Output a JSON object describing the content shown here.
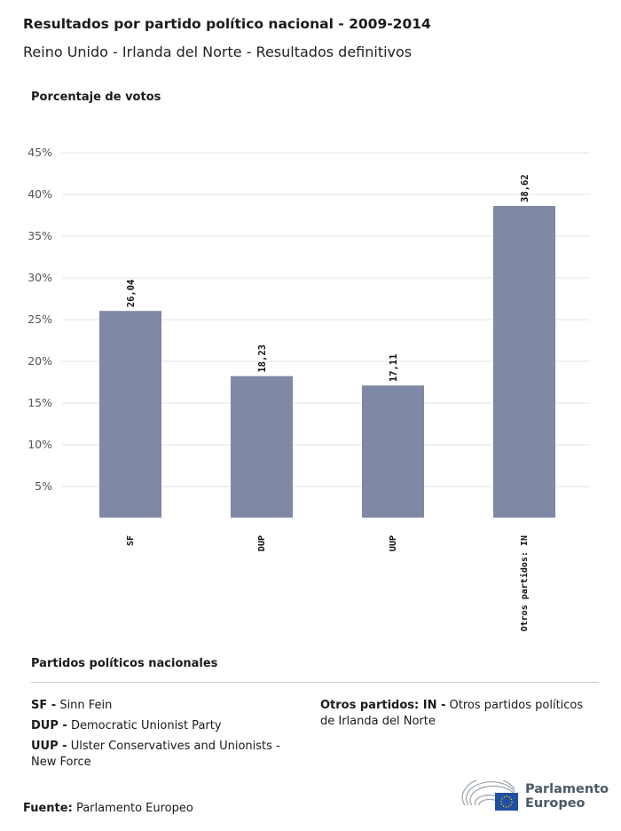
{
  "title": "Resultados por partido político nacional - 2009-2014",
  "subtitle": "Reino Unido - Irlanda del Norte - Resultados definitivos",
  "chart_data": {
    "type": "bar",
    "ylabel": "Porcentaje de votos",
    "categories": [
      "SF",
      "DUP",
      "UUP",
      "Otros partidos: IN"
    ],
    "values": [
      26.04,
      18.23,
      17.11,
      38.62
    ],
    "data_labels": [
      "26,04",
      "18,23",
      "17,11",
      "38,62"
    ],
    "yticks": [
      5,
      10,
      15,
      20,
      25,
      30,
      35,
      40,
      45
    ],
    "ytick_labels": [
      "5%",
      "10%",
      "15%",
      "20%",
      "25%",
      "30%",
      "35%",
      "40%",
      "45%"
    ],
    "ylim": [
      0,
      45
    ],
    "grid": true,
    "bar_color": "#7f88a5"
  },
  "legend": {
    "title": "Partidos políticos nacionales",
    "items": [
      {
        "abbr": "SF -",
        "name": "Sinn Fein"
      },
      {
        "abbr": "DUP -",
        "name": "Democratic Unionist Party"
      },
      {
        "abbr": "UUP -",
        "name": "Ulster Conservatives and Unionists - New Force"
      },
      {
        "abbr": "Otros partidos: IN -",
        "name": "Otros partidos políticos de Irlanda del Norte"
      }
    ]
  },
  "source": {
    "label": "Fuente:",
    "value": "Parlamento Europeo"
  },
  "logo": {
    "line1": "Parlamento",
    "line2": "Europeo"
  }
}
